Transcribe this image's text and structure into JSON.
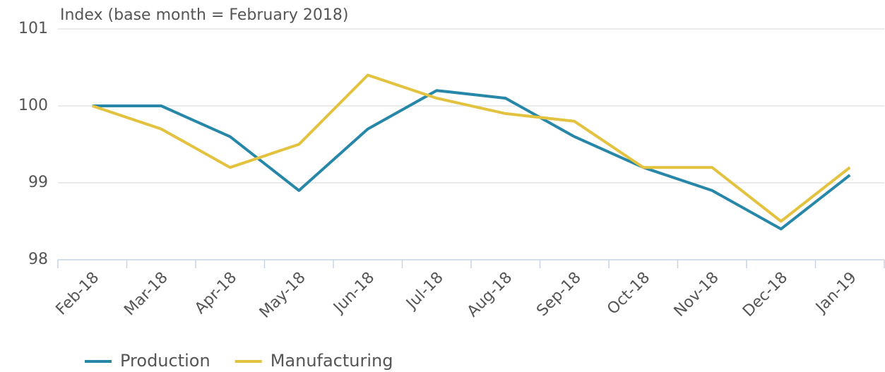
{
  "chart_data": {
    "type": "line",
    "title": "Index (base month = February 2018)",
    "categories": [
      "Feb-18",
      "Mar-18",
      "Apr-18",
      "May-18",
      "Jun-18",
      "Jul-18",
      "Aug-18",
      "Sep-18",
      "Oct-18",
      "Nov-18",
      "Dec-18",
      "Jan-19"
    ],
    "series": [
      {
        "name": "Production",
        "color": "#2787a8",
        "values": [
          100,
          100,
          99.6,
          98.9,
          99.7,
          100.2,
          100.1,
          99.6,
          99.2,
          98.9,
          98.4,
          99.1
        ]
      },
      {
        "name": "Manufacturing",
        "color": "#e3c23f",
        "values": [
          100,
          99.7,
          99.2,
          99.5,
          100.4,
          100.1,
          99.9,
          99.8,
          99.2,
          99.2,
          98.5,
          99.2
        ]
      }
    ],
    "ylim": [
      98,
      101
    ],
    "yticks": [
      98,
      99,
      100,
      101
    ],
    "grid": true,
    "legend": "bottom"
  }
}
